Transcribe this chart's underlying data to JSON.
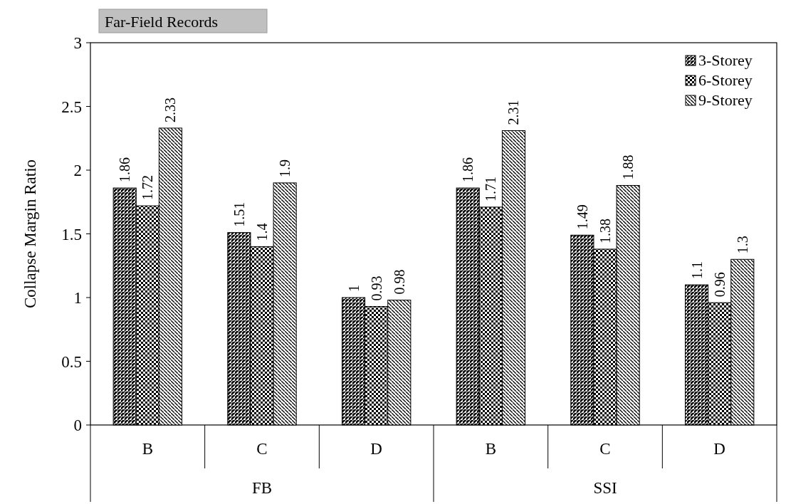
{
  "chart_data": {
    "type": "bar",
    "title": "Far-Field Records",
    "ylabel": "Collapse Margin Ratio",
    "categories": [
      "B",
      "C",
      "D",
      "B",
      "C",
      "D"
    ],
    "annotations": [
      "FB",
      "SSI"
    ],
    "series": [
      {
        "name": "3-Storey",
        "color": "#000000",
        "values": [
          1.86,
          1.51,
          1,
          1.86,
          1.49,
          1.1
        ]
      },
      {
        "name": "6-Storey",
        "color": "#000000",
        "values": [
          1.72,
          1.4,
          0.93,
          1.71,
          1.38,
          0.96
        ]
      },
      {
        "name": "9-Storey",
        "color": "#000000",
        "values": [
          2.33,
          1.9,
          0.98,
          2.31,
          1.88,
          1.3
        ]
      }
    ],
    "ylim": [
      0,
      3
    ],
    "yticks": [
      0,
      0.5,
      1,
      1.5,
      2,
      2.5,
      3
    ],
    "data_labels": true,
    "legend": "top right",
    "grid": false
  }
}
